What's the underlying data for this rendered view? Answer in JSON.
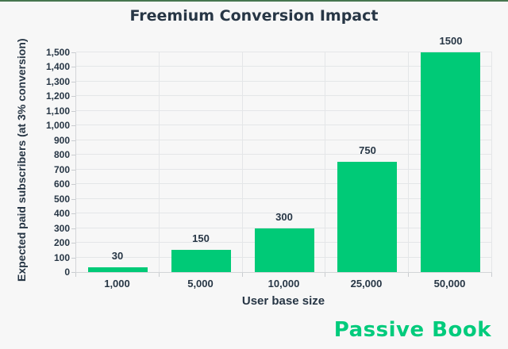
{
  "page": {
    "background": "#f7f7f7",
    "accent_line_color": "#46764f",
    "text_color": "#273645"
  },
  "branding": {
    "logo_text": "Passive Book",
    "logo_color": "#00cb7c"
  },
  "chart_data": {
    "type": "bar",
    "title": "Freemium Conversion Impact",
    "xlabel": "User base size",
    "ylabel": "Expected paid subscribers (at 3% conversion)",
    "categories": [
      "1,000",
      "5,000",
      "10,000",
      "25,000",
      "50,000"
    ],
    "values": [
      30,
      150,
      300,
      750,
      1500
    ],
    "bar_labels": [
      "30",
      "150",
      "300",
      "750",
      "1500"
    ],
    "bar_color": "#00ca77",
    "ylim": [
      0,
      1500
    ],
    "ytick_step": 100,
    "ytick_labels": [
      "0",
      "100",
      "200",
      "300",
      "400",
      "500",
      "600",
      "700",
      "800",
      "900",
      "1,000",
      "1,100",
      "1,200",
      "1,300",
      "1,400",
      "1,500"
    ],
    "grid": true,
    "gridline_color": "#e4e6e8",
    "axis_line_color": "#d3d5d8",
    "legend": "none"
  }
}
